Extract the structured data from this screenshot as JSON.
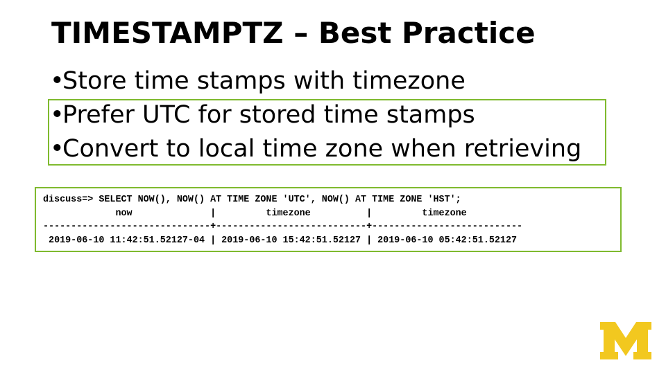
{
  "slide": {
    "title": "TIMESTAMPTZ – Best Practice",
    "bullet_char": "•",
    "bullets": [
      "Store time stamps with timezone",
      "Prefer UTC for stored time stamps",
      "Convert to local time zone when retrieving"
    ],
    "accent_color": "#7fba2e"
  },
  "terminal": {
    "lines": [
      "discuss=> SELECT NOW(), NOW() AT TIME ZONE 'UTC', NOW() AT TIME ZONE 'HST';",
      "             now              |         timezone          |         timezone",
      "------------------------------+---------------------------+---------------------------",
      " 2019-06-10 11:42:51.52127-04 | 2019-06-10 15:42:51.52127 | 2019-06-10 05:42:51.52127"
    ]
  },
  "logo": {
    "name": "block-m-logo",
    "color": "#f2c81f",
    "text": "M"
  }
}
